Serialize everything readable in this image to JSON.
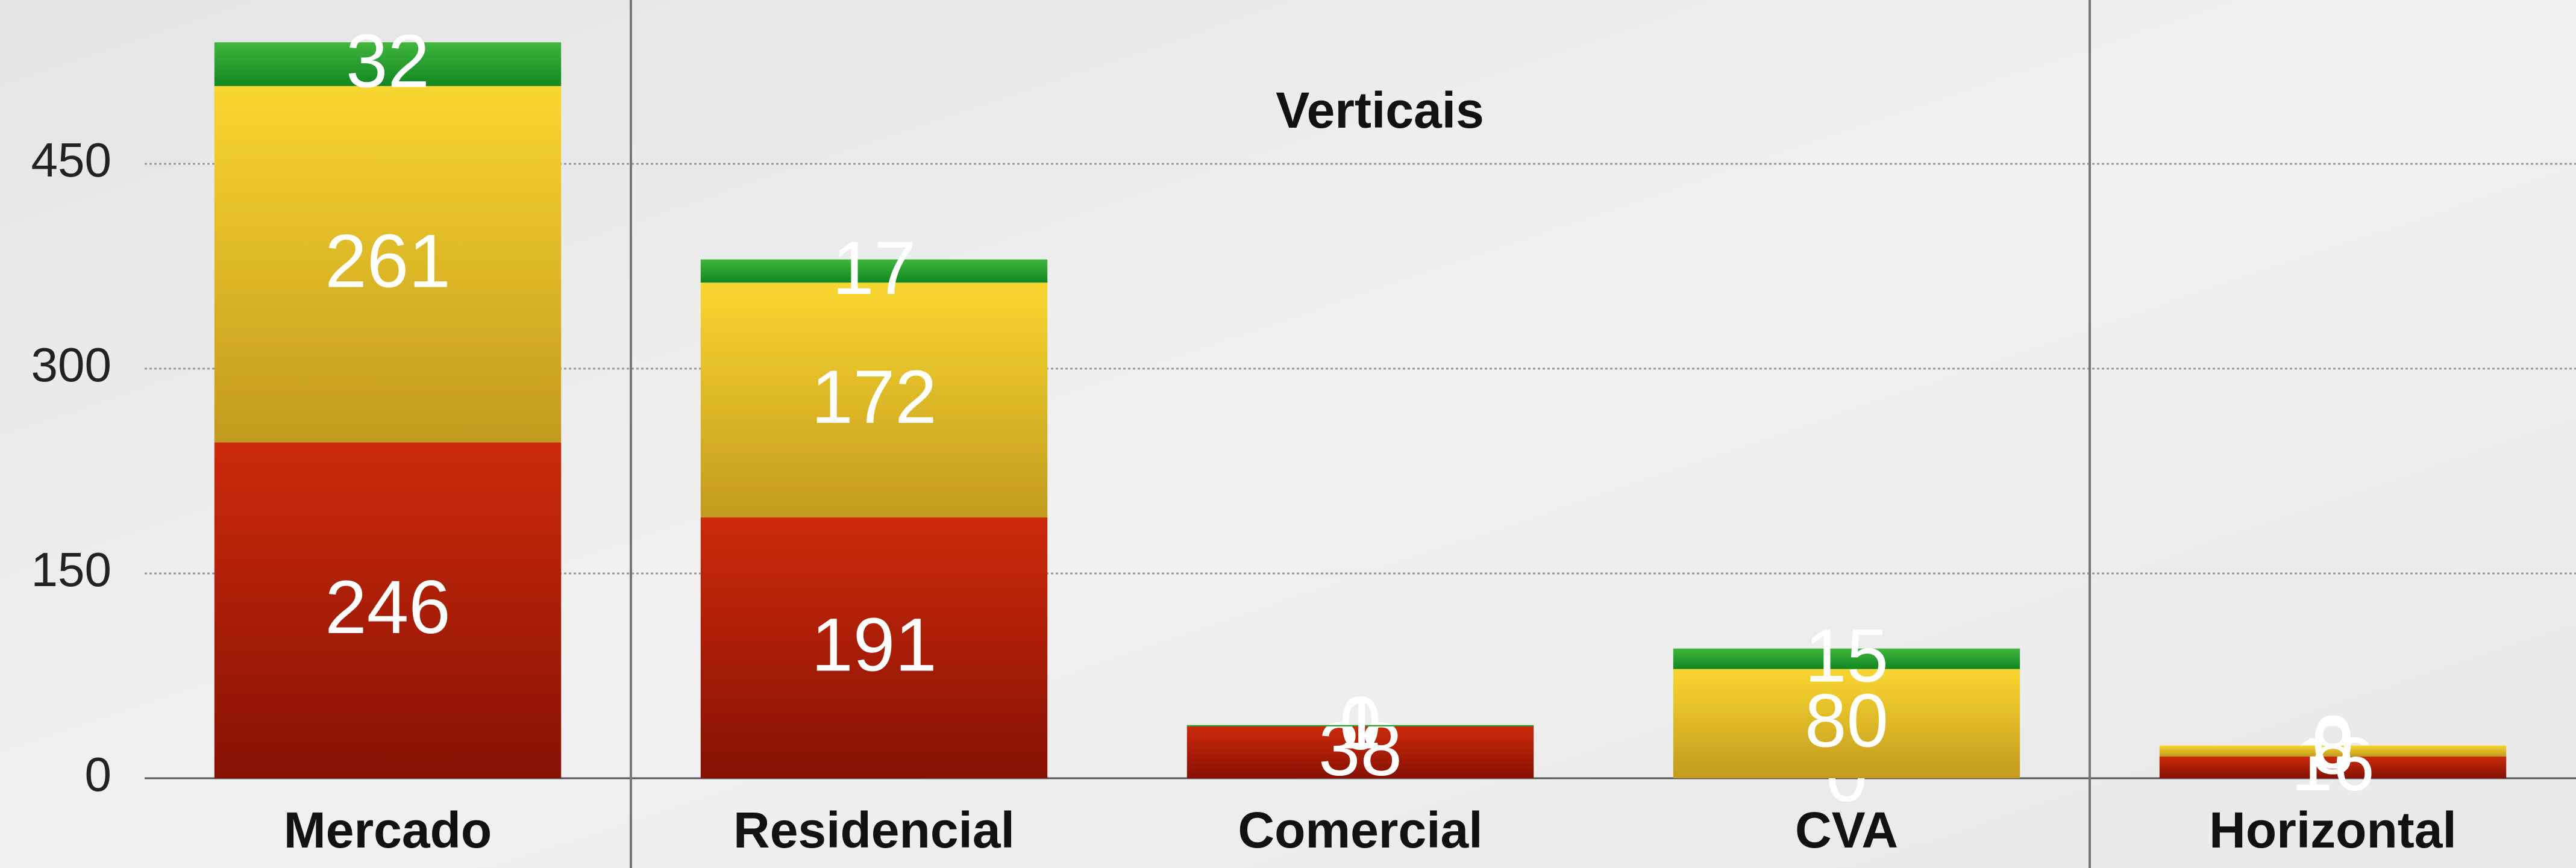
{
  "chart_data": {
    "type": "stacked_bar",
    "annotation": "Verticais",
    "categories": [
      "Mercado",
      "Residencial",
      "Comercial",
      "CVA",
      "Horizontal"
    ],
    "series": [
      {
        "color": "#b51f08",
        "values": [
          246,
          191,
          38,
          0,
          16
        ]
      },
      {
        "color": "#e6c12a",
        "values": [
          261,
          172,
          0,
          80,
          8
        ]
      },
      {
        "color": "#2a9e2e",
        "values": [
          32,
          17,
          1,
          15,
          0
        ]
      }
    ],
    "ylim": [
      0,
      570
    ],
    "yticks": [
      0,
      150,
      300,
      450
    ],
    "grid": true
  }
}
